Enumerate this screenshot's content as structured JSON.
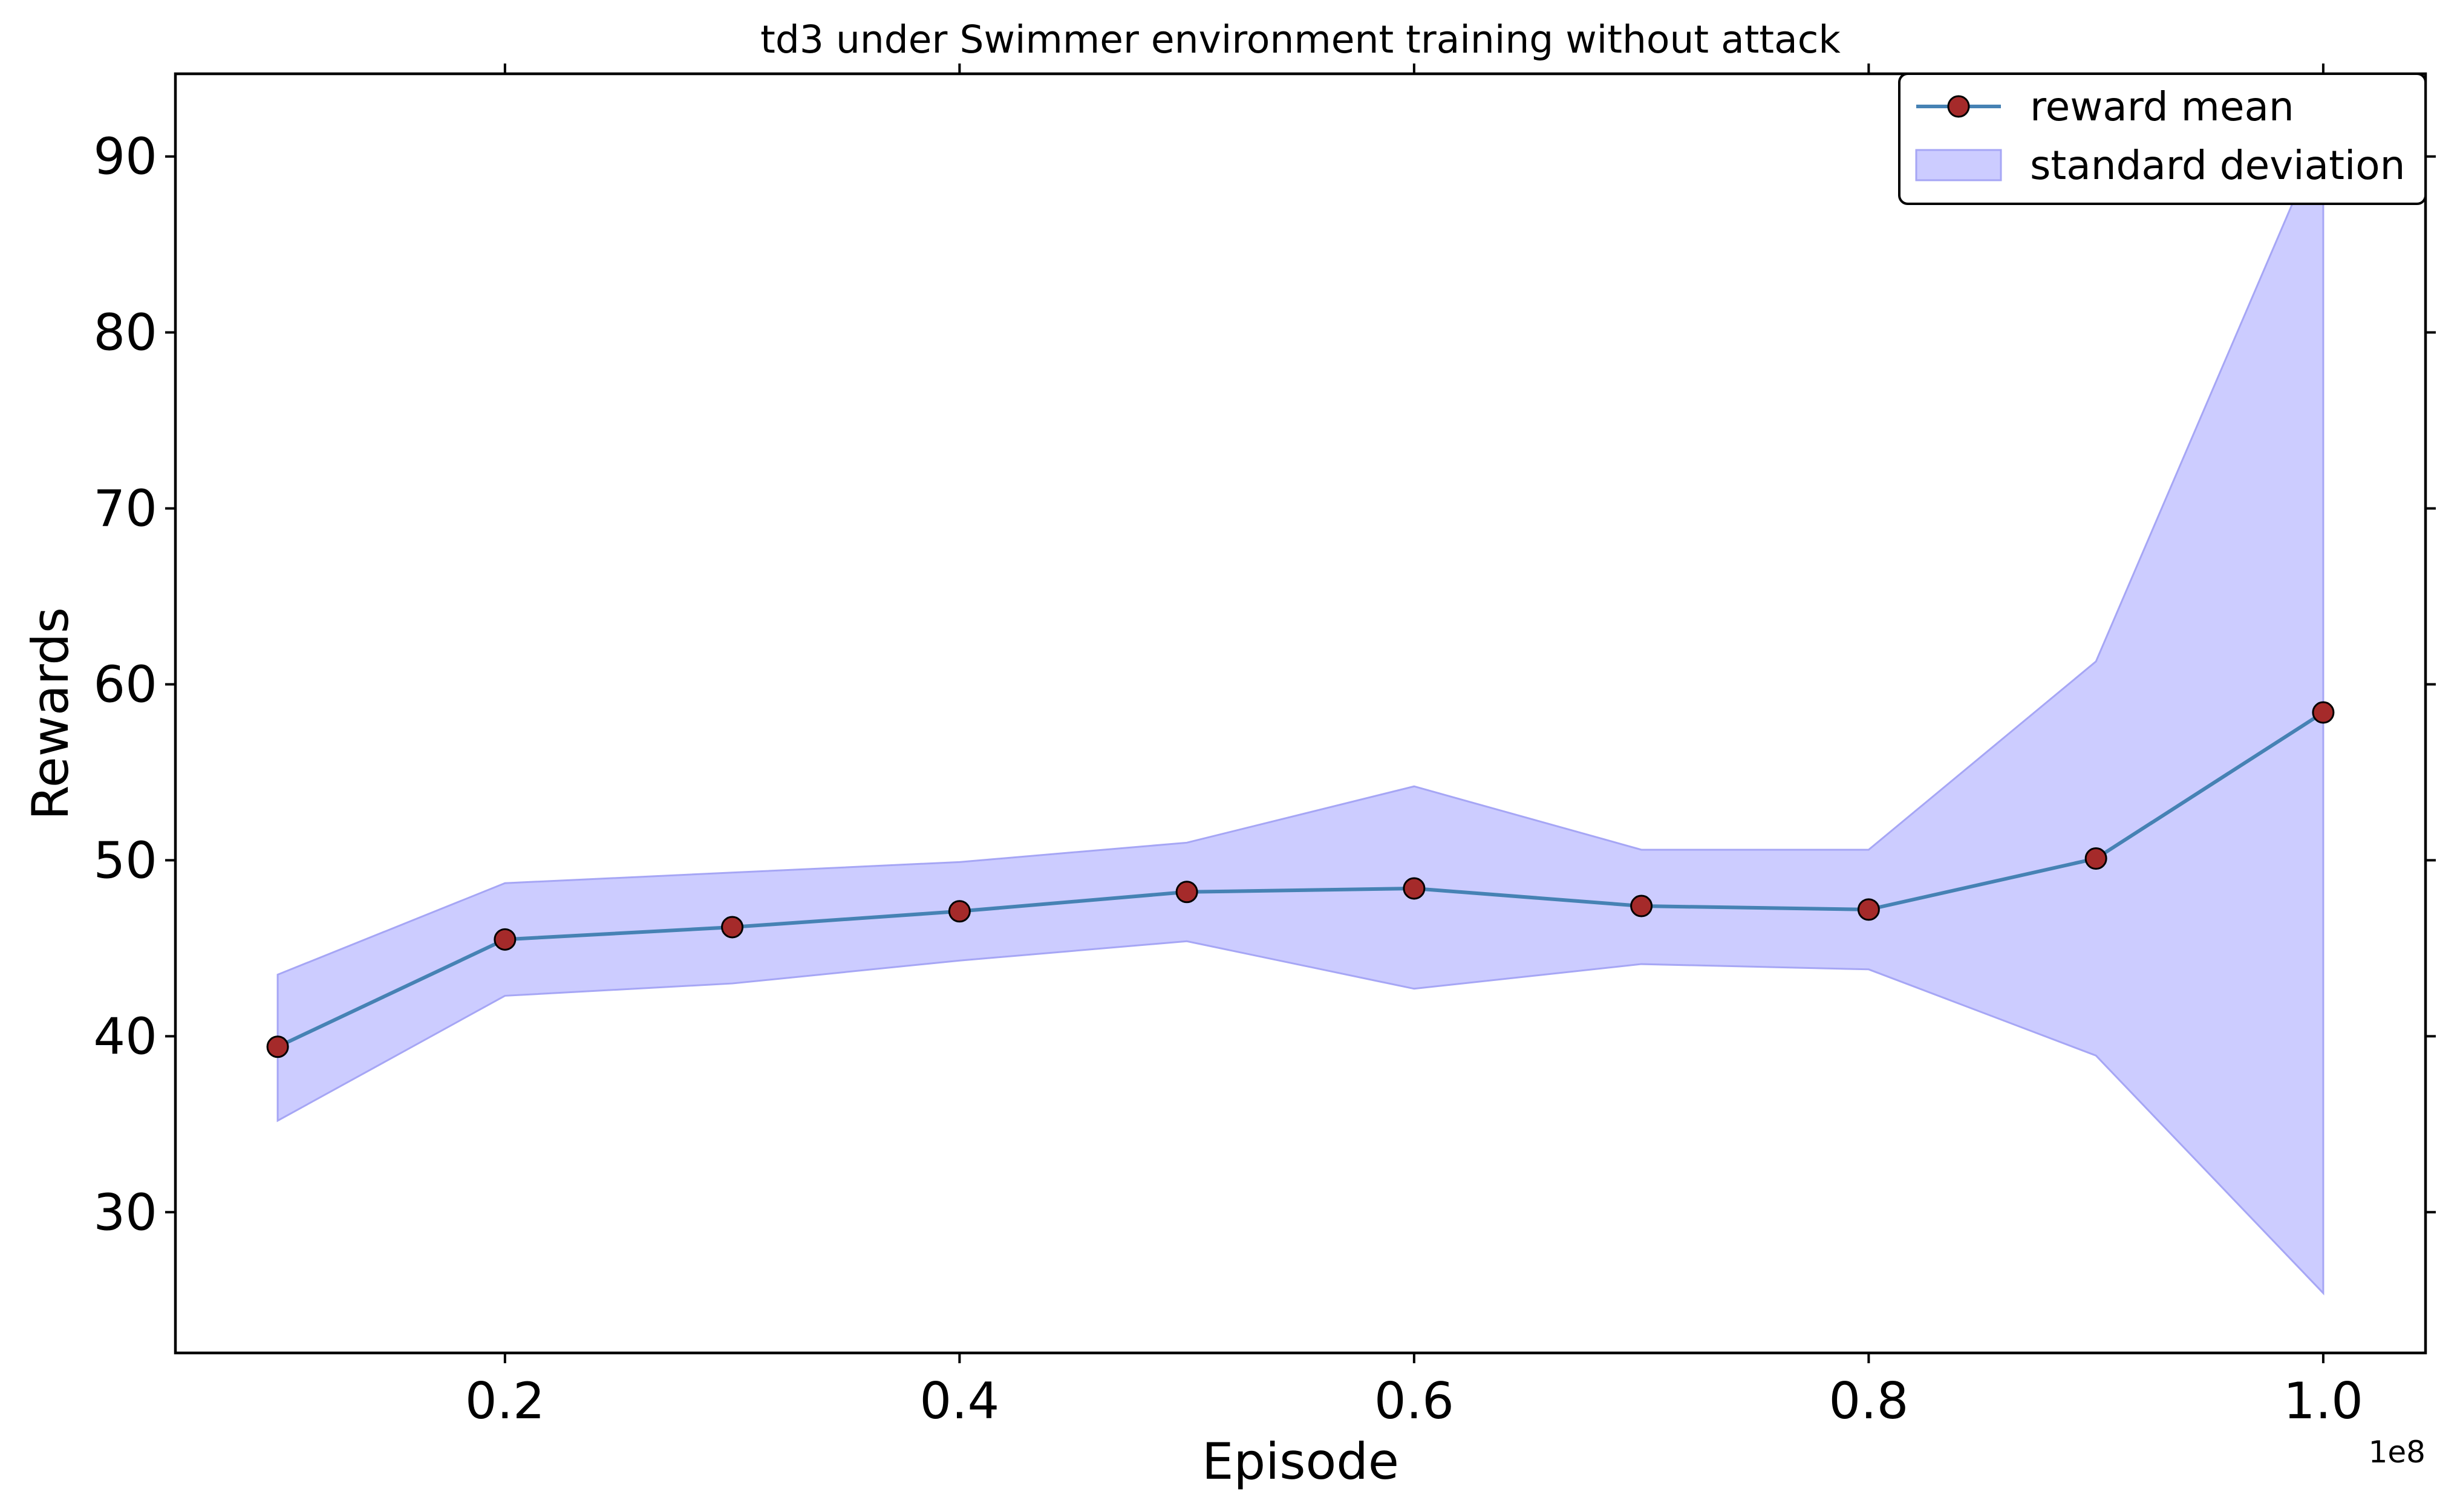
{
  "chart_data": {
    "type": "line",
    "title": "td3 under Swimmer environment training without attack",
    "xlabel": "Episode",
    "ylabel": "Rewards",
    "x_offset_label": "1e8",
    "x": [
      0.1,
      0.2,
      0.3,
      0.4,
      0.5,
      0.6,
      0.7,
      0.8,
      0.9,
      1.0
    ],
    "xlim": [
      0.055,
      1.045
    ],
    "ylim": [
      22.0,
      94.7
    ],
    "x_ticks": [
      0.2,
      0.4,
      0.6,
      0.8,
      1.0
    ],
    "x_tick_labels": [
      "0.2",
      "0.4",
      "0.6",
      "0.8",
      "1.0"
    ],
    "y_ticks": [
      30,
      40,
      50,
      60,
      70,
      80,
      90
    ],
    "y_tick_labels": [
      "30",
      "40",
      "50",
      "60",
      "70",
      "80",
      "90"
    ],
    "series": [
      {
        "name": "reward mean",
        "values": [
          39.4,
          45.5,
          46.2,
          47.1,
          48.2,
          48.4,
          47.4,
          47.2,
          50.1,
          58.4
        ],
        "color": "#4682b4",
        "marker_face": "#a52a2a",
        "marker_edge": "#000000"
      }
    ],
    "band": {
      "name": "standard deviation",
      "lower": [
        35.2,
        42.3,
        43.0,
        44.3,
        45.4,
        42.7,
        44.1,
        43.8,
        38.9,
        25.4
      ],
      "upper": [
        43.5,
        48.7,
        49.3,
        49.9,
        51.0,
        54.2,
        50.6,
        50.6,
        61.3,
        91.4
      ],
      "color": "#ccccff",
      "edge": "#a6a6f5"
    },
    "legend_position": "top-right",
    "grid": false
  }
}
